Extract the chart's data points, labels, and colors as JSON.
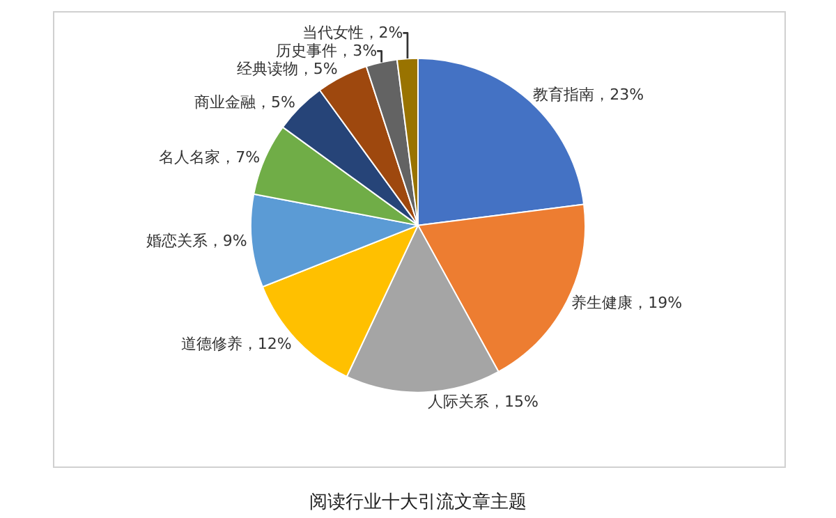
{
  "chart_data": {
    "type": "pie",
    "title": "阅读行业十大引流文章主题",
    "categories": [
      "教育指南",
      "养生健康",
      "人际关系",
      "道德修养",
      "婚恋关系",
      "名人名家",
      "商业金融",
      "经典读物",
      "历史事件",
      "当代女性"
    ],
    "values": [
      23,
      19,
      15,
      12,
      9,
      7,
      5,
      5,
      3,
      2
    ],
    "colors": [
      "#4472c4",
      "#ed7d31",
      "#a5a5a5",
      "#ffc000",
      "#5b9bd5",
      "#70ad47",
      "#264478",
      "#9e480e",
      "#636363",
      "#997300"
    ],
    "value_labels": [
      "23%",
      "19%",
      "15%",
      "12%",
      "9%",
      "7%",
      "5%",
      "5%",
      "3%",
      "2%"
    ],
    "legend": false
  }
}
